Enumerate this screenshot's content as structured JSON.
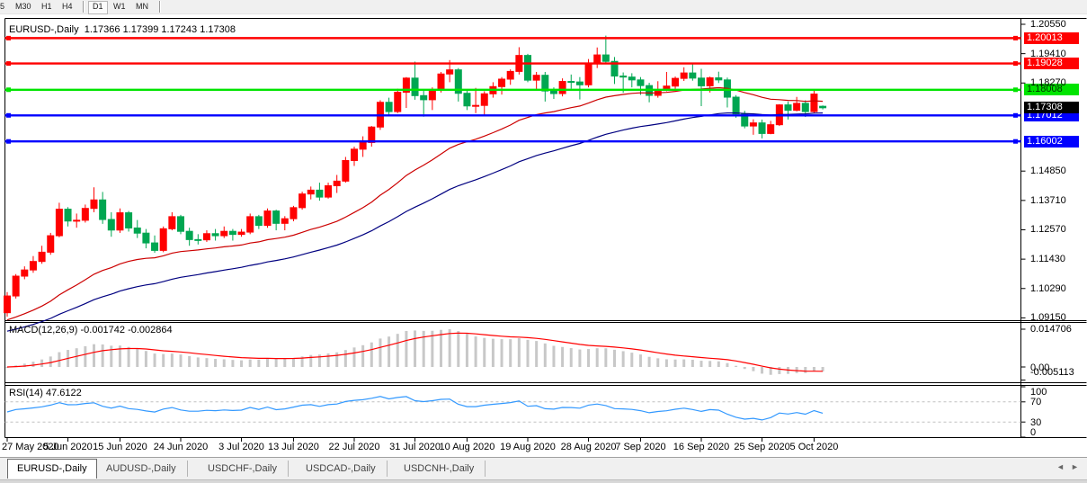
{
  "toolbar": {
    "timeframes": [
      "5",
      "M30",
      "H1",
      "H4",
      "D1",
      "W1",
      "MN"
    ],
    "active": "D1"
  },
  "chart": {
    "symbol_label": "EURUSD-,Daily",
    "ohlc_text": "1.17366 1.17399 1.17243 1.17308",
    "current_price": {
      "label": "1.17308",
      "value": 1.17308,
      "bg": "#000000",
      "fg": "#ffffff"
    }
  },
  "levels": [
    {
      "label": "1.20013",
      "value": 1.20013,
      "color": "#ff0000",
      "text": "#ffffff"
    },
    {
      "label": "1.19028",
      "value": 1.19028,
      "color": "#ff0000",
      "text": "#ffffff"
    },
    {
      "label": "1.18008",
      "value": 1.18008,
      "color": "#00e400",
      "text": "#003000"
    },
    {
      "label": "1.17012",
      "value": 1.17012,
      "color": "#0000ff",
      "text": "#ffffff"
    },
    {
      "label": "1.16002",
      "value": 1.16002,
      "color": "#0000ff",
      "text": "#ffffff"
    }
  ],
  "price_axis_labels": [
    "1.20550",
    "1.19410",
    "1.18270",
    "1.14850",
    "1.13710",
    "1.12570",
    "1.11430",
    "1.10290",
    "1.09150"
  ],
  "indicators": {
    "macd": {
      "label": "MACD(12,26,9)",
      "value_main": "-0.001742",
      "value_signal": "-0.002864",
      "axis_labels": [
        "0.014706",
        "0.00",
        "-0.005113"
      ],
      "axis_values": [
        0.014706,
        0,
        -0.005113
      ]
    },
    "rsi": {
      "label": "RSI(14)",
      "value": "47.6122",
      "axis_labels": [
        "100",
        "70",
        "30",
        "0"
      ],
      "axis_values": [
        100,
        70,
        30,
        0
      ],
      "level_lines": [
        70,
        30
      ]
    }
  },
  "chart_data": {
    "type": "candlestick",
    "title": "EURUSD-,Daily",
    "ylim": [
      1.0915,
      1.2055
    ],
    "x_tick_indices": [
      0,
      7,
      13,
      20,
      27,
      33,
      40,
      47,
      53,
      60,
      67,
      73,
      80,
      87,
      93
    ],
    "x_tick_labels": [
      "27 May 2020",
      "5 Jun 2020",
      "15 Jun 2020",
      "24 Jun 2020",
      "3 Jul 2020",
      "13 Jul 2020",
      "22 Jul 2020",
      "31 Jul 2020",
      "10 Aug 2020",
      "19 Aug 2020",
      "28 Aug 2020",
      "7 Sep 2020",
      "16 Sep 2020",
      "25 Sep 2020",
      "5 Oct 2020"
    ],
    "ohlc": [
      [
        1.0935,
        1.1015,
        1.092,
        1.1
      ],
      [
        1.1,
        1.1085,
        1.099,
        1.1077
      ],
      [
        1.1077,
        1.1115,
        1.1065,
        1.1101
      ],
      [
        1.1101,
        1.1155,
        1.109,
        1.1134
      ],
      [
        1.1134,
        1.1195,
        1.1125,
        1.117
      ],
      [
        1.117,
        1.1245,
        1.116,
        1.1234
      ],
      [
        1.1234,
        1.1362,
        1.1228,
        1.1337
      ],
      [
        1.1337,
        1.1345,
        1.127,
        1.1291
      ],
      [
        1.1291,
        1.132,
        1.1265,
        1.1294
      ],
      [
        1.1294,
        1.1355,
        1.1285,
        1.134
      ],
      [
        1.134,
        1.1422,
        1.1325,
        1.1373
      ],
      [
        1.1373,
        1.1404,
        1.128,
        1.1297
      ],
      [
        1.1297,
        1.1325,
        1.123,
        1.1256
      ],
      [
        1.1256,
        1.134,
        1.1245,
        1.1323
      ],
      [
        1.1323,
        1.133,
        1.125,
        1.1264
      ],
      [
        1.1264,
        1.1295,
        1.1225,
        1.1244
      ],
      [
        1.1244,
        1.126,
        1.1185,
        1.1206
      ],
      [
        1.1206,
        1.1235,
        1.1168,
        1.1177
      ],
      [
        1.1177,
        1.127,
        1.117,
        1.1261
      ],
      [
        1.1261,
        1.1325,
        1.1255,
        1.1308
      ],
      [
        1.1308,
        1.1315,
        1.124,
        1.1251
      ],
      [
        1.1251,
        1.1265,
        1.1195,
        1.1219
      ],
      [
        1.1219,
        1.124,
        1.12,
        1.1218
      ],
      [
        1.1218,
        1.1255,
        1.121,
        1.1242
      ],
      [
        1.1242,
        1.126,
        1.1215,
        1.1234
      ],
      [
        1.1234,
        1.127,
        1.1225,
        1.1251
      ],
      [
        1.1251,
        1.126,
        1.1215,
        1.1239
      ],
      [
        1.1239,
        1.126,
        1.123,
        1.1248
      ],
      [
        1.1248,
        1.132,
        1.124,
        1.1308
      ],
      [
        1.1308,
        1.1315,
        1.126,
        1.1274
      ],
      [
        1.1274,
        1.134,
        1.1265,
        1.133
      ],
      [
        1.133,
        1.1335,
        1.1255,
        1.1282
      ],
      [
        1.1282,
        1.131,
        1.1255,
        1.13
      ],
      [
        1.13,
        1.135,
        1.129,
        1.1343
      ],
      [
        1.1343,
        1.1405,
        1.1335,
        1.1396
      ],
      [
        1.1396,
        1.1425,
        1.1375,
        1.1411
      ],
      [
        1.1411,
        1.144,
        1.137,
        1.1384
      ],
      [
        1.1384,
        1.144,
        1.1378,
        1.1428
      ],
      [
        1.1428,
        1.147,
        1.14,
        1.1446
      ],
      [
        1.1446,
        1.154,
        1.144,
        1.1526
      ],
      [
        1.1526,
        1.158,
        1.1505,
        1.157
      ],
      [
        1.157,
        1.162,
        1.154,
        1.1596
      ],
      [
        1.1596,
        1.166,
        1.158,
        1.1656
      ],
      [
        1.1656,
        1.176,
        1.1645,
        1.1752
      ],
      [
        1.1752,
        1.177,
        1.17,
        1.1716
      ],
      [
        1.1716,
        1.1805,
        1.171,
        1.1791
      ],
      [
        1.1791,
        1.185,
        1.173,
        1.1846
      ],
      [
        1.1846,
        1.191,
        1.1762,
        1.1778
      ],
      [
        1.1778,
        1.1798,
        1.1696,
        1.1762
      ],
      [
        1.1762,
        1.181,
        1.1722,
        1.1802
      ],
      [
        1.1802,
        1.187,
        1.179,
        1.1862
      ],
      [
        1.1862,
        1.1916,
        1.183,
        1.1878
      ],
      [
        1.1878,
        1.1885,
        1.1755,
        1.1787
      ],
      [
        1.1787,
        1.18,
        1.1722,
        1.1738
      ],
      [
        1.1738,
        1.1808,
        1.171,
        1.174
      ],
      [
        1.174,
        1.1795,
        1.17,
        1.1785
      ],
      [
        1.1785,
        1.183,
        1.177,
        1.1813
      ],
      [
        1.1813,
        1.185,
        1.1782,
        1.1842
      ],
      [
        1.1842,
        1.188,
        1.182,
        1.1872
      ],
      [
        1.1872,
        1.1966,
        1.186,
        1.1934
      ],
      [
        1.1934,
        1.194,
        1.183,
        1.1838
      ],
      [
        1.1838,
        1.187,
        1.18,
        1.1857
      ],
      [
        1.1857,
        1.187,
        1.1755,
        1.1796
      ],
      [
        1.1796,
        1.181,
        1.1765,
        1.1786
      ],
      [
        1.1786,
        1.1845,
        1.1775,
        1.1833
      ],
      [
        1.1833,
        1.186,
        1.1805,
        1.1831
      ],
      [
        1.1831,
        1.185,
        1.1763,
        1.182
      ],
      [
        1.182,
        1.192,
        1.181,
        1.1903
      ],
      [
        1.1903,
        1.1965,
        1.1885,
        1.1936
      ],
      [
        1.1936,
        1.2011,
        1.19,
        1.1911
      ],
      [
        1.1911,
        1.1928,
        1.1823,
        1.1854
      ],
      [
        1.1854,
        1.1868,
        1.1789,
        1.185
      ],
      [
        1.185,
        1.1865,
        1.181,
        1.1839
      ],
      [
        1.1839,
        1.185,
        1.1781,
        1.1817
      ],
      [
        1.1817,
        1.1828,
        1.1752,
        1.1779
      ],
      [
        1.1779,
        1.1834,
        1.177,
        1.1801
      ],
      [
        1.1801,
        1.187,
        1.1795,
        1.1815
      ],
      [
        1.1815,
        1.1852,
        1.18,
        1.1845
      ],
      [
        1.1845,
        1.1888,
        1.1835,
        1.1866
      ],
      [
        1.1866,
        1.19,
        1.1836,
        1.1846
      ],
      [
        1.1846,
        1.1882,
        1.1737,
        1.1816
      ],
      [
        1.1816,
        1.1852,
        1.179,
        1.1847
      ],
      [
        1.1847,
        1.1871,
        1.1827,
        1.1839
      ],
      [
        1.1839,
        1.1848,
        1.1732,
        1.1772
      ],
      [
        1.1772,
        1.178,
        1.1692,
        1.1707
      ],
      [
        1.1707,
        1.1719,
        1.1651,
        1.166
      ],
      [
        1.166,
        1.1686,
        1.1626,
        1.1672
      ],
      [
        1.1672,
        1.1685,
        1.1612,
        1.1631
      ],
      [
        1.1631,
        1.168,
        1.1628,
        1.1665
      ],
      [
        1.1665,
        1.1745,
        1.166,
        1.1742
      ],
      [
        1.1742,
        1.1755,
        1.1685,
        1.1721
      ],
      [
        1.1721,
        1.1773,
        1.1717,
        1.1748
      ],
      [
        1.1748,
        1.176,
        1.1695,
        1.1716
      ],
      [
        1.1716,
        1.1797,
        1.171,
        1.1784
      ],
      [
        1.17366,
        1.17399,
        1.17243,
        1.17308
      ]
    ],
    "colors": {
      "bull_candle": "#ff0000",
      "bear_candle": "#00a651",
      "ma_fast": "#cc0000",
      "ma_slow": "#000080",
      "macd_histogram": "#c8c8c8",
      "macd_signal": "#ff0000",
      "rsi_line": "#3399ff",
      "level_dashed": "#c0c0c0",
      "panel_border": "#000000"
    }
  },
  "tabs": {
    "items": [
      "EURUSD-,Daily",
      "AUDUSD-,Daily",
      "USDCHF-,Daily",
      "USDCAD-,Daily",
      "USDCNH-,Daily"
    ],
    "active_index": 0,
    "scroll_left": "◄",
    "scroll_right": "►"
  }
}
